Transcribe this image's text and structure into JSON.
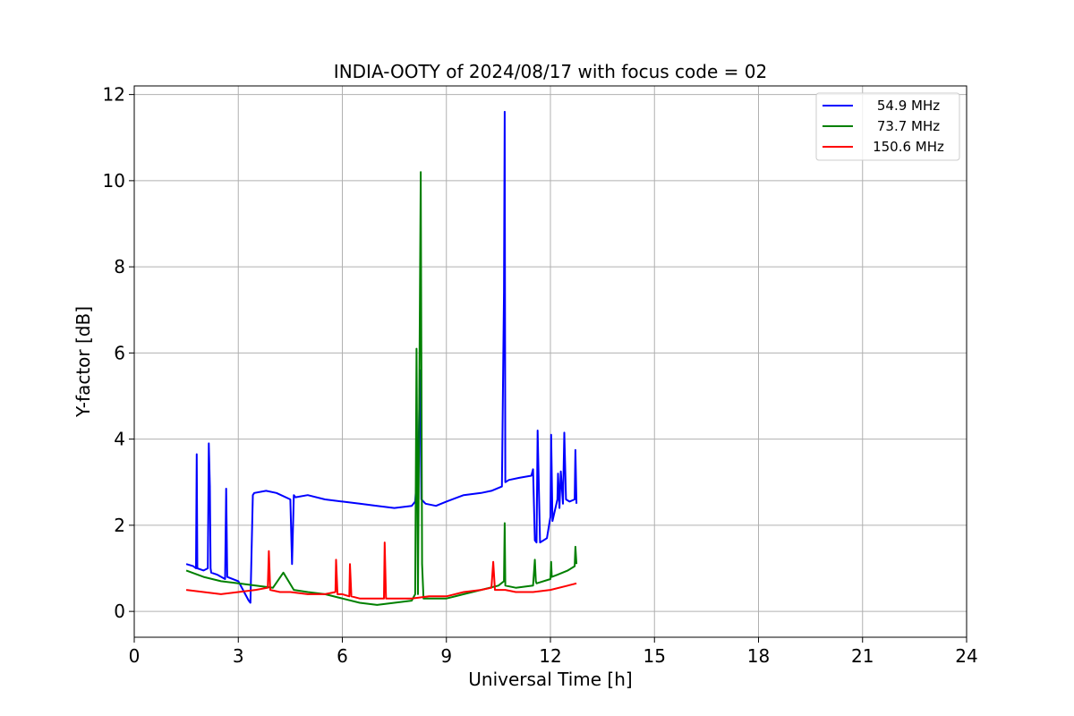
{
  "chart_data": {
    "type": "line",
    "title": "INDIA-OOTY of 2024/08/17 with focus code = 02",
    "xlabel": "Universal Time [h]",
    "ylabel": "Y-factor [dB]",
    "xlim": [
      0,
      24
    ],
    "ylim": [
      -0.6,
      12.2
    ],
    "xticks": [
      0,
      3,
      6,
      9,
      12,
      15,
      18,
      21,
      24
    ],
    "yticks": [
      0,
      2,
      4,
      6,
      8,
      10,
      12
    ],
    "grid": true,
    "legend_position": "top-right",
    "series": [
      {
        "name": "  54.9 MHz",
        "color": "#0000ff",
        "x": [
          1.5,
          1.7,
          1.78,
          1.8,
          1.82,
          2.0,
          2.12,
          2.15,
          2.18,
          2.2,
          2.22,
          2.4,
          2.62,
          2.65,
          2.68,
          3.0,
          3.3,
          3.35,
          3.42,
          3.46,
          3.8,
          4.1,
          4.5,
          4.55,
          4.6,
          4.65,
          5.0,
          5.5,
          6.0,
          6.5,
          7.0,
          7.5,
          8.0,
          8.1,
          8.2,
          8.24,
          8.28,
          8.4,
          8.7,
          9.0,
          9.5,
          10.0,
          10.3,
          10.6,
          10.66,
          10.68,
          10.7,
          10.8,
          11.1,
          11.45,
          11.5,
          11.55,
          11.6,
          11.63,
          11.7,
          11.9,
          12.0,
          12.02,
          12.06,
          12.2,
          12.22,
          12.26,
          12.3,
          12.36,
          12.4,
          12.45,
          12.55,
          12.7,
          12.72,
          12.75
        ],
        "values": [
          1.1,
          1.05,
          1.0,
          3.65,
          1.0,
          0.95,
          1.0,
          3.9,
          2.9,
          1.0,
          0.9,
          0.85,
          0.75,
          2.85,
          0.8,
          0.7,
          0.25,
          0.2,
          2.7,
          2.75,
          2.8,
          2.75,
          2.6,
          1.1,
          2.7,
          2.65,
          2.7,
          2.6,
          2.55,
          2.5,
          2.45,
          2.4,
          2.45,
          2.55,
          3.8,
          5.6,
          2.6,
          2.5,
          2.45,
          2.55,
          2.7,
          2.75,
          2.8,
          2.9,
          7.4,
          11.6,
          3.0,
          3.05,
          3.1,
          3.15,
          3.3,
          1.65,
          1.6,
          4.2,
          1.6,
          1.7,
          2.2,
          4.1,
          2.1,
          2.6,
          3.2,
          2.4,
          3.25,
          2.5,
          4.15,
          2.6,
          2.55,
          2.6,
          3.75,
          2.5
        ]
      },
      {
        "name": "  73.7 MHz",
        "color": "#008000",
        "x": [
          1.5,
          2.0,
          2.5,
          3.0,
          3.5,
          4.0,
          4.3,
          4.6,
          5.0,
          5.5,
          6.0,
          6.5,
          7.0,
          7.5,
          8.0,
          8.1,
          8.14,
          8.18,
          8.22,
          8.26,
          8.3,
          8.34,
          8.4,
          9.0,
          9.5,
          10.0,
          10.5,
          10.66,
          10.68,
          10.7,
          11.0,
          11.5,
          11.55,
          11.58,
          11.6,
          12.0,
          12.02,
          12.04,
          12.2,
          12.5,
          12.7,
          12.72,
          12.75
        ],
        "values": [
          0.95,
          0.8,
          0.7,
          0.65,
          0.6,
          0.55,
          0.9,
          0.5,
          0.45,
          0.4,
          0.3,
          0.2,
          0.15,
          0.2,
          0.25,
          0.4,
          6.1,
          0.4,
          5.1,
          10.2,
          1.1,
          0.3,
          0.3,
          0.3,
          0.4,
          0.5,
          0.6,
          0.7,
          2.05,
          0.6,
          0.55,
          0.6,
          1.2,
          0.7,
          0.65,
          0.75,
          1.15,
          0.8,
          0.85,
          0.95,
          1.05,
          1.5,
          1.1
        ]
      },
      {
        "name": "150.6 MHz",
        "color": "#ff0000",
        "x": [
          1.5,
          2.0,
          2.5,
          3.0,
          3.5,
          3.85,
          3.88,
          3.92,
          4.2,
          4.5,
          5.0,
          5.5,
          5.8,
          5.82,
          5.86,
          6.0,
          6.2,
          6.22,
          6.26,
          6.5,
          7.0,
          7.2,
          7.22,
          7.26,
          7.5,
          8.0,
          8.5,
          9.0,
          9.5,
          10.0,
          10.3,
          10.35,
          10.4,
          10.7,
          11.0,
          11.5,
          12.0,
          12.5,
          12.75
        ],
        "values": [
          0.5,
          0.45,
          0.4,
          0.45,
          0.5,
          0.55,
          1.4,
          0.5,
          0.45,
          0.45,
          0.4,
          0.4,
          0.45,
          1.2,
          0.4,
          0.4,
          0.35,
          1.1,
          0.35,
          0.3,
          0.3,
          0.3,
          1.6,
          0.3,
          0.3,
          0.3,
          0.35,
          0.35,
          0.45,
          0.5,
          0.55,
          1.15,
          0.5,
          0.5,
          0.45,
          0.45,
          0.5,
          0.6,
          0.65
        ]
      }
    ]
  }
}
